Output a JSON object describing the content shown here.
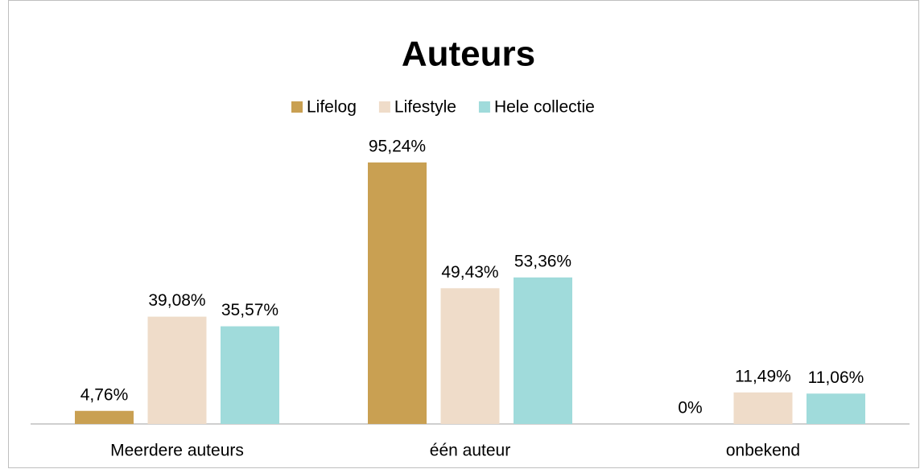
{
  "chart_data": {
    "type": "bar",
    "title": "Auteurs",
    "categories": [
      "Meerdere auteurs",
      "één auteur",
      "onbekend"
    ],
    "series": [
      {
        "name": "Lifelog",
        "color": "#c9a052",
        "values": [
          4.76,
          95.24,
          0
        ],
        "value_labels": [
          "4,76%",
          "95,24%",
          "0%"
        ]
      },
      {
        "name": "Lifestyle",
        "color": "#efdcc9",
        "values": [
          39.08,
          49.43,
          11.49
        ],
        "value_labels": [
          "39,08%",
          "49,43%",
          "11,49%"
        ]
      },
      {
        "name": "Hele collectie",
        "color": "#a0dbdb",
        "values": [
          35.57,
          53.36,
          11.06
        ],
        "value_labels": [
          "35,57%",
          "53,36%",
          "11,06%"
        ]
      }
    ],
    "legend": "top"
  }
}
